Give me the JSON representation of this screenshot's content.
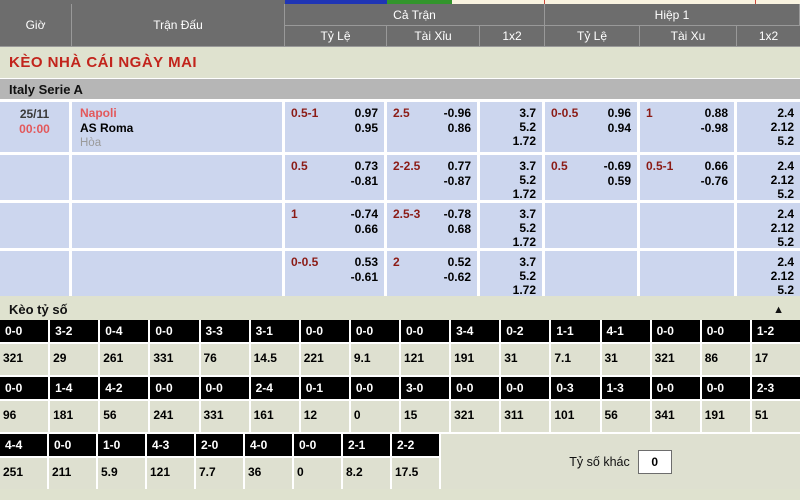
{
  "colors": {
    "header_bg": "#6d6d6d",
    "page_bg": "#dfe2cf",
    "league_bg": "#b6b6b6",
    "odds_cell_bg": "#ccd6ee",
    "handicap_red": "#8b1b15",
    "accent_red": "#c2241c",
    "team_red": "#e3585b",
    "score_header_bg": "#000000",
    "score_value_bg": "#dee0d0",
    "sliver_blue": "#1f35b5",
    "sliver_green": "#33952c"
  },
  "header": {
    "time_label": "Giờ",
    "match_label": "Trận Đấu",
    "full_time_label": "Cả Trận",
    "first_half_label": "Hiệp 1",
    "sub": [
      "Tỷ Lệ",
      "Tài Xỉu",
      "1x2",
      "Tỷ Lệ",
      "Tài Xu",
      "1x2"
    ]
  },
  "page_title": "KÈO NHÀ CÁI NGÀY MAI",
  "league": "Italy Serie A",
  "match": {
    "date": "25/11",
    "time": "00:00",
    "home": "Napoli",
    "away": "AS Roma",
    "draw_label": "Hòa"
  },
  "odds_rows": [
    {
      "ft_hdp": {
        "line": "0.5-1",
        "a": "0.97",
        "b": "0.95"
      },
      "ft_ou": {
        "line": "2.5",
        "a": "-0.96",
        "b": "0.86"
      },
      "ft_1x2": [
        "3.7",
        "5.2",
        "1.72"
      ],
      "h1_hdp": {
        "line": "0-0.5",
        "a": "0.96",
        "b": "0.94"
      },
      "h1_ou": {
        "line": "1",
        "a": "0.88",
        "b": "-0.98"
      },
      "h1_1x2": [
        "2.4",
        "2.12",
        "5.2"
      ]
    },
    {
      "ft_hdp": {
        "line": "0.5",
        "a": "0.73",
        "b": "-0.81"
      },
      "ft_ou": {
        "line": "2-2.5",
        "a": "0.77",
        "b": "-0.87"
      },
      "ft_1x2": [
        "3.7",
        "5.2",
        "1.72"
      ],
      "h1_hdp": {
        "line": "0.5",
        "a": "-0.69",
        "b": "0.59"
      },
      "h1_ou": {
        "line": "0.5-1",
        "a": "0.66",
        "b": "-0.76"
      },
      "h1_1x2": [
        "2.4",
        "2.12",
        "5.2"
      ]
    },
    {
      "ft_hdp": {
        "line": "1",
        "a": "-0.74",
        "b": "0.66"
      },
      "ft_ou": {
        "line": "2.5-3",
        "a": "-0.78",
        "b": "0.68"
      },
      "ft_1x2": [
        "3.7",
        "5.2",
        "1.72"
      ],
      "h1_hdp": {
        "line": "",
        "a": "",
        "b": ""
      },
      "h1_ou": {
        "line": "",
        "a": "",
        "b": ""
      },
      "h1_1x2": [
        "2.4",
        "2.12",
        "5.2"
      ]
    },
    {
      "ft_hdp": {
        "line": "0-0.5",
        "a": "0.53",
        "b": "-0.61"
      },
      "ft_ou": {
        "line": "2",
        "a": "0.52",
        "b": "-0.62"
      },
      "ft_1x2": [
        "3.7",
        "5.2",
        "1.72"
      ],
      "h1_hdp": {
        "line": "",
        "a": "",
        "b": ""
      },
      "h1_ou": {
        "line": "",
        "a": "",
        "b": ""
      },
      "h1_1x2": [
        "2.4",
        "2.12",
        "5.2"
      ]
    }
  ],
  "score_section": {
    "title": "Kèo tỷ số",
    "collapse_icon": "▲",
    "rows": [
      {
        "cells": [
          {
            "score": "0-0",
            "odds": "321"
          },
          {
            "score": "3-2",
            "odds": "29"
          },
          {
            "score": "0-4",
            "odds": "261"
          },
          {
            "score": "0-0",
            "odds": "331"
          },
          {
            "score": "3-3",
            "odds": "76"
          },
          {
            "score": "3-1",
            "odds": "14.5"
          },
          {
            "score": "0-0",
            "odds": "221"
          },
          {
            "score": "0-0",
            "odds": "9.1"
          },
          {
            "score": "0-0",
            "odds": "121"
          },
          {
            "score": "3-4",
            "odds": "191"
          },
          {
            "score": "0-2",
            "odds": "31"
          },
          {
            "score": "1-1",
            "odds": "7.1"
          },
          {
            "score": "4-1",
            "odds": "31"
          },
          {
            "score": "0-0",
            "odds": "321"
          },
          {
            "score": "0-0",
            "odds": "86"
          },
          {
            "score": "1-2",
            "odds": "17"
          }
        ]
      },
      {
        "cells": [
          {
            "score": "0-0",
            "odds": "96"
          },
          {
            "score": "1-4",
            "odds": "181"
          },
          {
            "score": "4-2",
            "odds": "56"
          },
          {
            "score": "0-0",
            "odds": "241"
          },
          {
            "score": "0-0",
            "odds": "331"
          },
          {
            "score": "2-4",
            "odds": "161"
          },
          {
            "score": "0-1",
            "odds": "12"
          },
          {
            "score": "0-0",
            "odds": "0"
          },
          {
            "score": "3-0",
            "odds": "15"
          },
          {
            "score": "0-0",
            "odds": "321"
          },
          {
            "score": "0-0",
            "odds": "311"
          },
          {
            "score": "0-3",
            "odds": "101"
          },
          {
            "score": "1-3",
            "odds": "56"
          },
          {
            "score": "0-0",
            "odds": "341"
          },
          {
            "score": "0-0",
            "odds": "191"
          },
          {
            "score": "2-3",
            "odds": "51"
          }
        ]
      },
      {
        "cells": [
          {
            "score": "4-4",
            "odds": "251"
          },
          {
            "score": "0-0",
            "odds": "211"
          },
          {
            "score": "1-0",
            "odds": "5.9"
          },
          {
            "score": "4-3",
            "odds": "121"
          },
          {
            "score": "2-0",
            "odds": "7.7"
          },
          {
            "score": "4-0",
            "odds": "36"
          },
          {
            "score": "0-0",
            "odds": "0"
          },
          {
            "score": "2-1",
            "odds": "8.2"
          },
          {
            "score": "2-2",
            "odds": "17.5"
          }
        ]
      }
    ],
    "other_score_label": "Tỷ số khác",
    "other_score_value": "0"
  }
}
